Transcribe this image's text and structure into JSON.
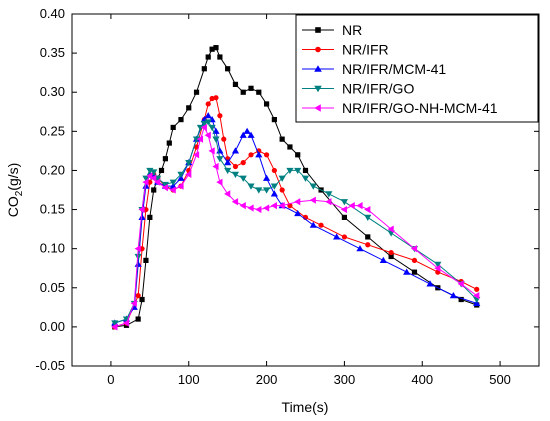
{
  "chart_data": {
    "type": "line",
    "xlabel": "Time(s)",
    "ylabel_main": "CO",
    "ylabel_sub": "2",
    "ylabel_rest": "(g/s)",
    "xlim": [
      -50,
      550
    ],
    "ylim": [
      -0.05,
      0.4
    ],
    "xticks": [
      0,
      100,
      200,
      300,
      400,
      500
    ],
    "yticks": [
      -0.05,
      0.0,
      0.05,
      0.1,
      0.15,
      0.2,
      0.25,
      0.3,
      0.35,
      0.4
    ],
    "xtick_labels": [
      "0",
      "100",
      "200",
      "300",
      "400",
      "500"
    ],
    "ytick_labels": [
      "-0.05",
      "0.00",
      "0.05",
      "0.10",
      "0.15",
      "0.20",
      "0.25",
      "0.30",
      "0.35",
      "0.40"
    ],
    "grid": false,
    "legend_position": "top-right",
    "series": [
      {
        "name": "NR",
        "color": "#000000",
        "marker": "square",
        "x": [
          5,
          20,
          35,
          40,
          45,
          50,
          55,
          60,
          65,
          70,
          75,
          80,
          90,
          100,
          110,
          120,
          125,
          130,
          135,
          140,
          150,
          160,
          170,
          180,
          190,
          200,
          210,
          220,
          230,
          240,
          250,
          270,
          300,
          330,
          360,
          390,
          420,
          450,
          470
        ],
        "y": [
          0.0,
          0.002,
          0.01,
          0.035,
          0.085,
          0.14,
          0.175,
          0.19,
          0.2,
          0.215,
          0.235,
          0.255,
          0.265,
          0.28,
          0.3,
          0.33,
          0.345,
          0.355,
          0.357,
          0.345,
          0.33,
          0.31,
          0.3,
          0.305,
          0.3,
          0.285,
          0.265,
          0.24,
          0.23,
          0.22,
          0.2,
          0.175,
          0.14,
          0.115,
          0.09,
          0.07,
          0.05,
          0.035,
          0.028
        ]
      },
      {
        "name": "NR/IFR",
        "color": "#ff0000",
        "marker": "circle",
        "x": [
          5,
          20,
          35,
          40,
          45,
          50,
          55,
          60,
          70,
          80,
          90,
          100,
          110,
          120,
          125,
          130,
          135,
          140,
          145,
          150,
          160,
          170,
          180,
          190,
          200,
          210,
          220,
          230,
          250,
          270,
          300,
          330,
          360,
          390,
          420,
          450,
          470
        ],
        "y": [
          0.0,
          0.005,
          0.04,
          0.1,
          0.15,
          0.185,
          0.195,
          0.19,
          0.18,
          0.175,
          0.18,
          0.2,
          0.23,
          0.265,
          0.285,
          0.292,
          0.293,
          0.27,
          0.24,
          0.215,
          0.205,
          0.21,
          0.22,
          0.225,
          0.22,
          0.2,
          0.175,
          0.155,
          0.14,
          0.13,
          0.115,
          0.105,
          0.095,
          0.085,
          0.07,
          0.058,
          0.048
        ]
      },
      {
        "name": "NR/IFR/MCM-41",
        "color": "#0000ff",
        "marker": "triangle-up",
        "x": [
          5,
          20,
          30,
          35,
          40,
          45,
          50,
          55,
          60,
          70,
          80,
          90,
          100,
          110,
          120,
          125,
          130,
          135,
          140,
          150,
          160,
          170,
          175,
          180,
          190,
          200,
          210,
          220,
          240,
          260,
          290,
          320,
          350,
          380,
          410,
          440,
          470
        ],
        "y": [
          0.005,
          0.01,
          0.025,
          0.08,
          0.14,
          0.18,
          0.195,
          0.192,
          0.185,
          0.18,
          0.18,
          0.19,
          0.21,
          0.24,
          0.265,
          0.27,
          0.265,
          0.25,
          0.225,
          0.21,
          0.225,
          0.245,
          0.25,
          0.245,
          0.22,
          0.19,
          0.17,
          0.155,
          0.145,
          0.13,
          0.115,
          0.1,
          0.085,
          0.07,
          0.055,
          0.04,
          0.03
        ]
      },
      {
        "name": "NR/IFR/GO",
        "color": "#008080",
        "marker": "triangle-down",
        "x": [
          5,
          20,
          30,
          35,
          40,
          45,
          50,
          55,
          60,
          70,
          80,
          90,
          100,
          110,
          115,
          120,
          125,
          130,
          135,
          140,
          150,
          160,
          170,
          180,
          190,
          200,
          210,
          220,
          230,
          240,
          250,
          260,
          280,
          300,
          330,
          360,
          390,
          420,
          450,
          470
        ],
        "y": [
          0.005,
          0.01,
          0.03,
          0.09,
          0.15,
          0.19,
          0.2,
          0.198,
          0.19,
          0.182,
          0.185,
          0.195,
          0.21,
          0.24,
          0.255,
          0.26,
          0.262,
          0.255,
          0.24,
          0.215,
          0.2,
          0.195,
          0.19,
          0.18,
          0.175,
          0.175,
          0.18,
          0.19,
          0.2,
          0.2,
          0.19,
          0.18,
          0.17,
          0.16,
          0.14,
          0.12,
          0.1,
          0.08,
          0.055,
          0.035
        ]
      },
      {
        "name": "NR/IFR/GO-NH-MCM-41",
        "color": "#ff00ff",
        "marker": "triangle-left",
        "x": [
          5,
          20,
          30,
          35,
          40,
          45,
          50,
          55,
          60,
          70,
          80,
          90,
          100,
          110,
          115,
          120,
          125,
          130,
          135,
          140,
          150,
          160,
          170,
          180,
          190,
          200,
          210,
          220,
          240,
          260,
          280,
          300,
          310,
          320,
          330,
          360,
          390,
          420,
          450,
          470
        ],
        "y": [
          0.0,
          0.005,
          0.03,
          0.1,
          0.15,
          0.185,
          0.193,
          0.19,
          0.185,
          0.178,
          0.175,
          0.18,
          0.195,
          0.22,
          0.24,
          0.255,
          0.245,
          0.225,
          0.205,
          0.185,
          0.17,
          0.16,
          0.155,
          0.152,
          0.15,
          0.152,
          0.155,
          0.155,
          0.16,
          0.162,
          0.16,
          0.15,
          0.155,
          0.155,
          0.15,
          0.125,
          0.1,
          0.075,
          0.055,
          0.04
        ]
      }
    ]
  }
}
